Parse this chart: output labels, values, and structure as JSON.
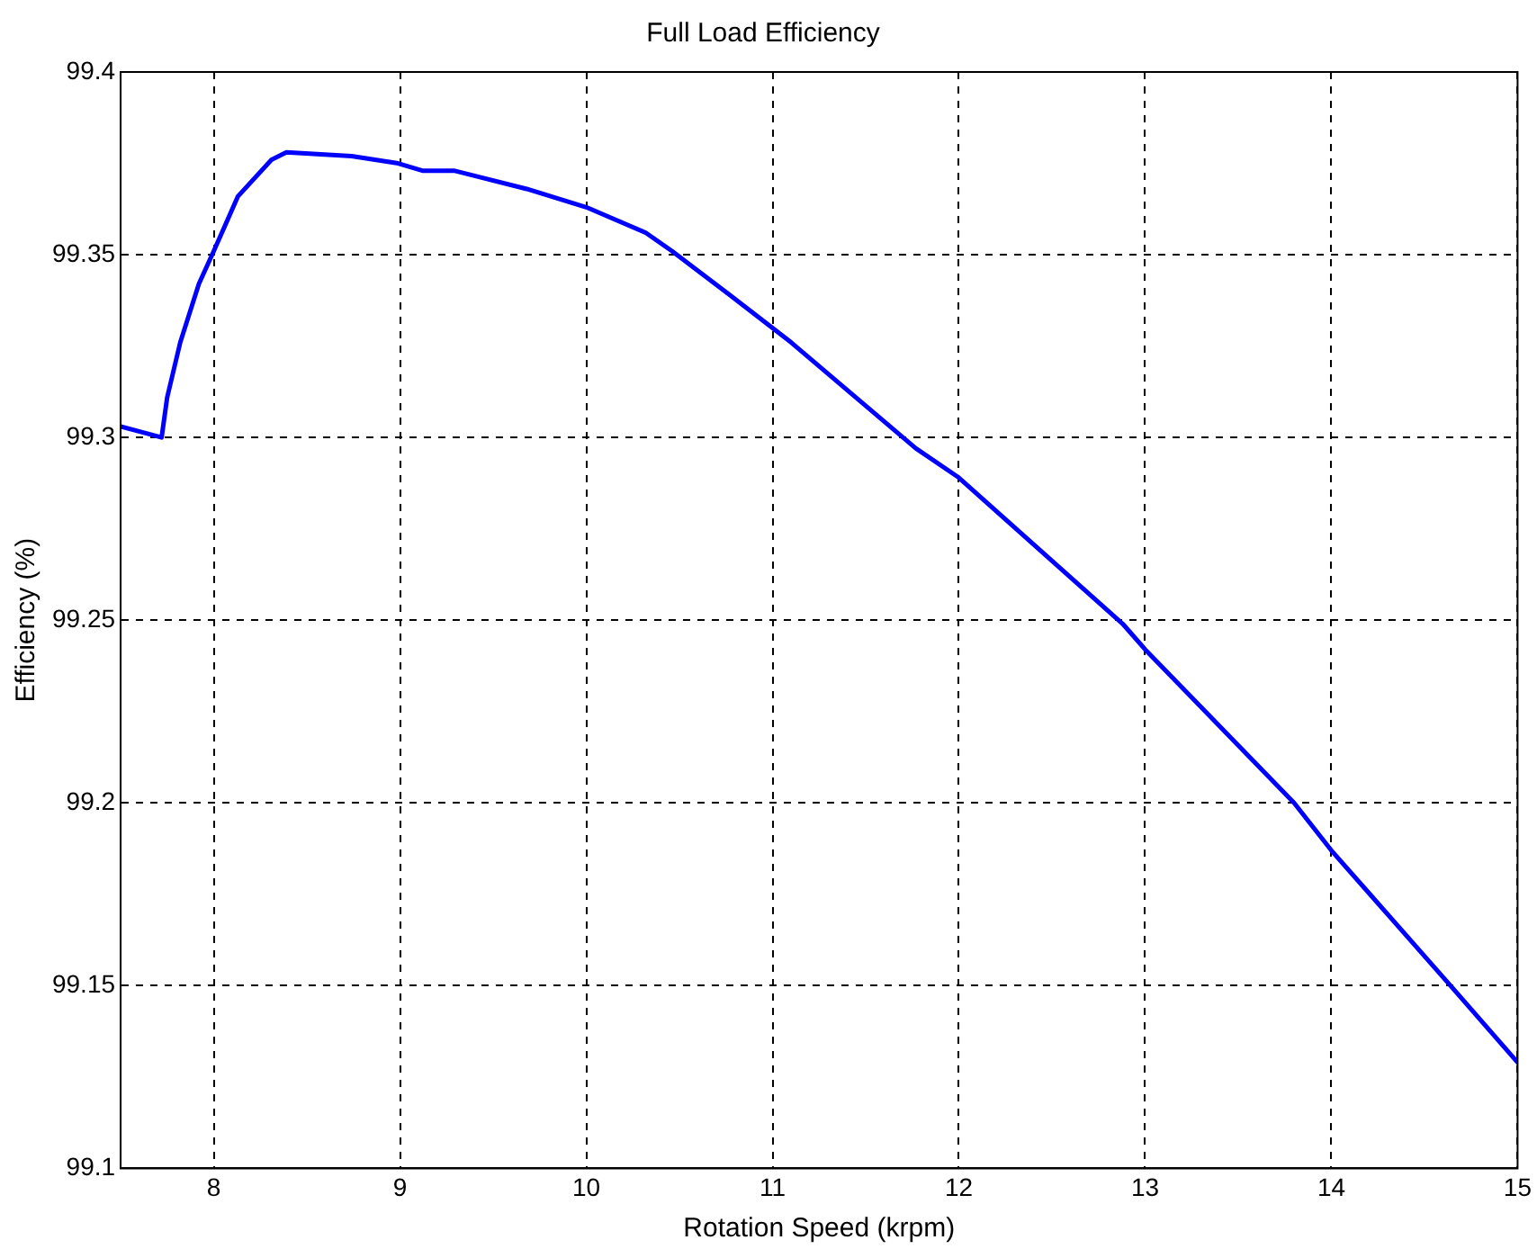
{
  "chart_data": {
    "type": "line",
    "title": "Full Load Efficiency",
    "xlabel": "Rotation Speed (krpm)",
    "ylabel": "Efficiency (%)",
    "x": [
      7.5,
      7.72,
      7.75,
      7.82,
      7.92,
      8.0,
      8.13,
      8.31,
      8.39,
      8.74,
      8.99,
      9.12,
      9.29,
      9.68,
      10.0,
      10.32,
      10.46,
      10.77,
      11.1,
      11.77,
      12.0,
      12.88,
      13.0,
      13.8,
      14.0,
      14.64,
      15.0
    ],
    "series": [
      {
        "color": "#0000ff",
        "values": [
          99.303,
          99.3,
          99.311,
          99.326,
          99.342,
          99.351,
          99.366,
          99.376,
          99.378,
          99.377,
          99.375,
          99.373,
          99.373,
          99.368,
          99.363,
          99.356,
          99.351,
          99.339,
          99.326,
          99.297,
          99.289,
          99.249,
          99.242,
          99.2,
          99.187,
          99.15,
          99.129
        ]
      }
    ],
    "xlim": [
      7.5,
      15
    ],
    "xticks": [
      8,
      9,
      10,
      11,
      12,
      13,
      14,
      15
    ],
    "ylim": [
      99.1,
      99.4
    ],
    "yticks": [
      99.1,
      99.15,
      99.2,
      99.25,
      99.3,
      99.35,
      99.4
    ],
    "grid": true,
    "legend": false,
    "marker": "none",
    "line_style": "solid"
  }
}
